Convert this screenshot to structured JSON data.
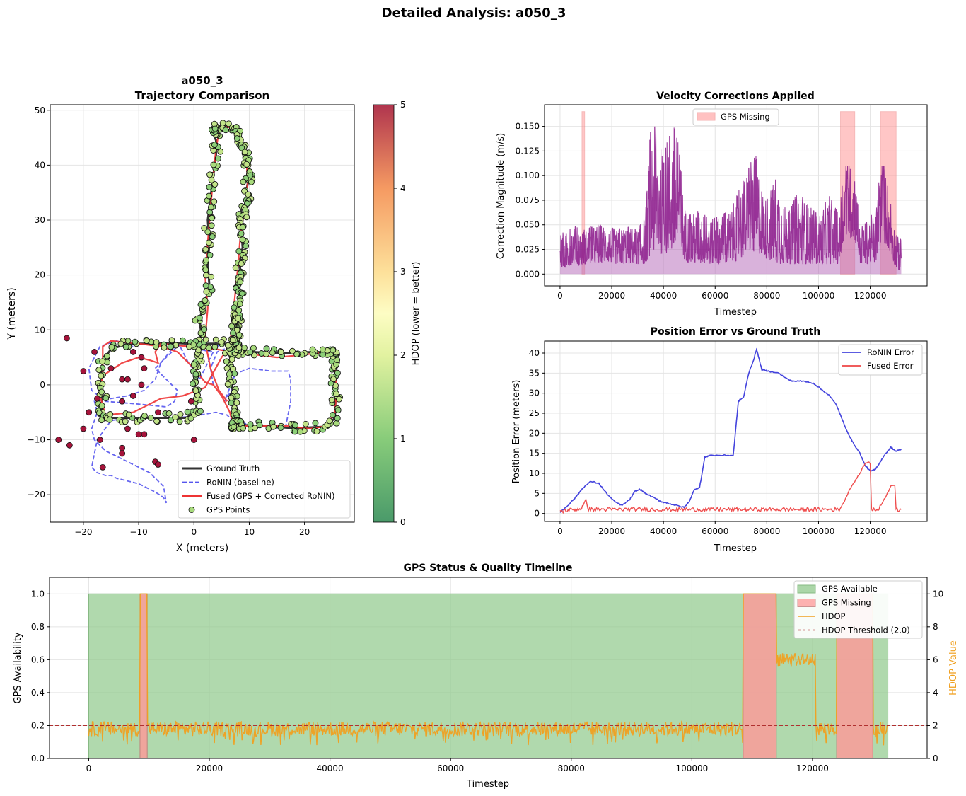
{
  "figure": {
    "title": "Detailed Analysis: a050_3"
  },
  "chart_data": [
    {
      "id": "trajectory",
      "type": "scatter",
      "title": "a050_3\nTrajectory Comparison",
      "title_lines": [
        "a050_3",
        "Trajectory Comparison"
      ],
      "xlabel": "X (meters)",
      "ylabel": "Y (meters)",
      "xlim": [
        -26,
        29
      ],
      "ylim": [
        -25,
        51
      ],
      "xticks": [
        -20,
        -10,
        0,
        10,
        20
      ],
      "yticks": [
        -20,
        -10,
        0,
        10,
        20,
        30,
        40,
        50
      ],
      "grid": true,
      "legend_placement": "lower-right",
      "colorbar": {
        "label": "HDOP (lower = better)",
        "range": [
          0,
          5
        ],
        "ticks": [
          0,
          1,
          2,
          3,
          4,
          5
        ],
        "colormap": "RdYlGn_r"
      },
      "series": [
        {
          "name": "Ground Truth",
          "style": "solid",
          "color": "#333333",
          "x": [
            0,
            0.3,
            0.8,
            1.2,
            1.3,
            1.0,
            2.0,
            2.8,
            2.5,
            2.8,
            2.5,
            3.0,
            3.5,
            4.0,
            4.0,
            3.2,
            3.6,
            4.6,
            6.5,
            7.8,
            8.5,
            8.8,
            9.5,
            9.8,
            10.0,
            9.6,
            9.6,
            8.5,
            8.8,
            8.6,
            8.8,
            8.2,
            8.6,
            8.2,
            8.4,
            8.0,
            7.6,
            8.0,
            7.3,
            7.8,
            7.6,
            7.2,
            7.4,
            6.2,
            6.8,
            6.6,
            7.0,
            7.5,
            7.7,
            7.5,
            7.4,
            7.4,
            7.5,
            9.0,
            12.0,
            17.0,
            20.0,
            24.0,
            25.5,
            25.6,
            25.4,
            25.5,
            25.3,
            25.4,
            24.8,
            22.0,
            18.0,
            14.0,
            10.0,
            8.0,
            7.5,
            7.5,
            6.5,
            3.0,
            0.0,
            -4.0,
            -8.0,
            -12.0,
            -15.0,
            -16.5,
            -16.8,
            -16.5,
            -16.8,
            -16.2,
            -13.0,
            -9.0,
            -5.0,
            -1.5,
            0.5,
            0.3,
            0.0
          ],
          "y": [
            1.0,
            3.0,
            5.0,
            7.0,
            9.5,
            12.0,
            15.0,
            18.0,
            22.0,
            26.0,
            30.0,
            34.0,
            38.0,
            42.0,
            44.5,
            46.5,
            47.0,
            47.2,
            47.0,
            46.2,
            45.2,
            43.0,
            41.5,
            40.0,
            38.0,
            36.0,
            33.0,
            32.0,
            30.0,
            28.0,
            25.0,
            22.0,
            20.0,
            18.0,
            16.0,
            14.0,
            12.5,
            11.5,
            10.5,
            9.0,
            8.0,
            7.0,
            6.5,
            6.2,
            4.0,
            1.5,
            -1.0,
            -3.0,
            -5.0,
            -6.5,
            -7.0,
            -7.3,
            -7.2,
            -7.3,
            -7.5,
            -7.8,
            -7.8,
            -7.6,
            -6.0,
            -3.0,
            0.0,
            2.5,
            4.5,
            5.8,
            5.8,
            6.0,
            5.8,
            5.8,
            6.0,
            6.2,
            6.5,
            7.0,
            7.5,
            7.5,
            7.5,
            7.6,
            7.5,
            7.5,
            6.5,
            4.5,
            1.0,
            -2.0,
            -5.0,
            -6.0,
            -6.0,
            -6.0,
            -6.0,
            -6.0,
            -5.0,
            -2.0,
            1.0
          ]
        },
        {
          "name": "RoNIN (baseline)",
          "style": "dashed",
          "color": "#5555ee",
          "x": [
            3.5,
            3.0,
            4.2,
            5.5,
            6.5,
            7.0,
            7.2,
            6.8,
            5.5,
            7.5,
            10.0,
            14.0,
            17.0,
            17.5,
            17.5,
            16.5,
            12.0,
            9.0,
            7.0,
            6.0,
            4.0,
            1.0,
            -3.0,
            -8.0,
            -12.0,
            -15.0,
            -17.5,
            -18.5,
            -18.0,
            -17.5,
            -16.0,
            -15.0,
            -14.0,
            -10.0,
            -7.0,
            -5.5,
            -5.0,
            -5.5,
            -8.0,
            -12.0,
            -16.0,
            -18.0,
            -18.5,
            -17.5,
            -18.0,
            -12.0,
            -9.0,
            -7.0,
            -6.0,
            -4.0,
            -4.5,
            -2.5,
            -1.0,
            0.5,
            1.0,
            2.0,
            3.5,
            4.0,
            4.5,
            3.0,
            1.0,
            -1.0,
            -3.0,
            -5.0,
            -7.0,
            -5.0,
            -3.0,
            -3.5,
            -5.0,
            -10.0,
            -16.0,
            -18.5,
            -19.0,
            -17.0,
            -14.0,
            -12.0,
            -11.0
          ],
          "y": [
            0.0,
            3.0,
            6.0,
            6.5,
            5.0,
            3.0,
            1.0,
            -1.0,
            -3.0,
            2.0,
            3.0,
            2.5,
            2.5,
            1.0,
            -3.0,
            -8.0,
            -7.5,
            -7.0,
            -6.5,
            -5.5,
            -5.0,
            -5.5,
            -6.0,
            -6.0,
            -6.0,
            -6.5,
            -10.0,
            -15.0,
            -15.5,
            -16.0,
            -16.5,
            -16.5,
            -17.0,
            -18.0,
            -19.5,
            -20.5,
            -21.5,
            -18.5,
            -16.0,
            -14.0,
            -12.0,
            -10.0,
            -8.0,
            -5.0,
            -3.0,
            -2.0,
            -1.0,
            1.0,
            4.0,
            6.5,
            8.0,
            7.0,
            4.0,
            2.0,
            1.0,
            3.0,
            6.0,
            7.5,
            7.0,
            6.0,
            6.5,
            7.5,
            7.0,
            5.0,
            3.0,
            1.0,
            -1.0,
            -3.0,
            -4.0,
            -3.5,
            -3.0,
            -1.0,
            3.0,
            7.0,
            8.0,
            7.5,
            7.0
          ]
        },
        {
          "name": "Fused (GPS + Corrected RoNIN)",
          "style": "solid",
          "color": "#ee3333",
          "x": [
            6.0,
            4.5,
            3.0,
            2.0,
            2.5,
            2.0,
            2.5,
            3.0,
            3.5,
            4.0,
            4.5,
            6.0,
            7.5,
            8.5,
            9.5,
            9.7,
            9.5,
            8.8,
            8.3,
            8.0,
            7.6,
            7.2,
            6.8,
            6.5,
            5.0,
            2.0,
            -2.0,
            -6.0,
            -11.0,
            -16.0,
            -17.0,
            -16.5,
            -16.5,
            -15.0,
            -10.0,
            -6.0,
            -3.0,
            0.0,
            2.0,
            3.5,
            5.0,
            6.5,
            7.0,
            7.5,
            12.0,
            17.0,
            21.0,
            24.0,
            25.5,
            25.8,
            25.6,
            25.3,
            24.5,
            20.0,
            15.0,
            11.0,
            8.5,
            7.0,
            4.0,
            -1.0,
            -6.0,
            -7.0,
            -6.5,
            -8.0,
            -10.0,
            -13.0,
            -16.0
          ],
          "y": [
            -3.0,
            -1.0,
            3.0,
            8.0,
            14.0,
            20.0,
            26.0,
            32.0,
            38.0,
            43.0,
            46.0,
            47.0,
            46.5,
            44.5,
            41.0,
            37.0,
            33.0,
            30.0,
            26.0,
            22.0,
            18.0,
            14.0,
            10.0,
            7.0,
            5.0,
            -0.5,
            -2.0,
            -2.5,
            -5.0,
            -5.5,
            -2.0,
            2.0,
            7.0,
            8.0,
            7.5,
            7.0,
            6.0,
            3.0,
            0.5,
            0.0,
            -2.0,
            -5.0,
            -7.0,
            -7.5,
            -7.5,
            -7.5,
            -8.0,
            -7.5,
            -5.0,
            -1.0,
            2.5,
            5.5,
            6.0,
            5.5,
            5.0,
            5.5,
            6.0,
            6.0,
            6.5,
            7.0,
            7.5,
            6.0,
            4.0,
            4.5,
            5.0,
            4.0,
            2.0
          ]
        },
        {
          "name": "GPS Points",
          "style": "marker",
          "color": "#a8db7c",
          "note_color_by": "HDOP"
        }
      ]
    },
    {
      "id": "velocity",
      "type": "area",
      "title": "Velocity Corrections Applied",
      "xlabel": "Timestep",
      "ylabel": "Correction Magnitude (m/s)",
      "xlim": [
        -6000,
        142000
      ],
      "ylim": [
        -0.012,
        0.172
      ],
      "xticks": [
        0,
        20000,
        40000,
        60000,
        80000,
        100000,
        120000
      ],
      "yticks": [
        0.0,
        0.025,
        0.05,
        0.075,
        0.1,
        0.125,
        0.15
      ],
      "ytick_labels": [
        "0.000",
        "0.025",
        "0.050",
        "0.075",
        "0.100",
        "0.125",
        "0.150"
      ],
      "grid": true,
      "legend_placement": "upper-center",
      "series": [
        {
          "name": "GPS Missing",
          "color": "#ff9999",
          "spans": [
            [
              8500,
              9500
            ],
            [
              108500,
              114000
            ],
            [
              124000,
              130000
            ]
          ],
          "top": 0.165
        }
      ],
      "envelope": {
        "x": [
          0,
          2000,
          5000,
          8000,
          10000,
          14000,
          18000,
          22000,
          26000,
          30000,
          33000,
          35000,
          38000,
          40000,
          42000,
          44000,
          46000,
          48000,
          50000,
          54000,
          58000,
          62000,
          66000,
          70000,
          72000,
          74000,
          76000,
          78000,
          80000,
          84000,
          88000,
          92000,
          96000,
          100000,
          104000,
          108000,
          110000,
          114000,
          116000,
          120000,
          122000,
          124000,
          126000,
          128000,
          130000,
          132000
        ],
        "hi": [
          0.045,
          0.04,
          0.05,
          0.045,
          0.045,
          0.05,
          0.05,
          0.045,
          0.05,
          0.045,
          0.06,
          0.15,
          0.15,
          0.11,
          0.15,
          0.15,
          0.13,
          0.07,
          0.06,
          0.065,
          0.055,
          0.06,
          0.065,
          0.09,
          0.1,
          0.115,
          0.12,
          0.09,
          0.075,
          0.1,
          0.06,
          0.085,
          0.07,
          0.06,
          0.08,
          0.06,
          0.11,
          0.11,
          0.045,
          0.06,
          0.06,
          0.11,
          0.11,
          0.07,
          0.04,
          0.035
        ],
        "lo": [
          0.005,
          0.005,
          0.01,
          0.008,
          0.01,
          0.01,
          0.012,
          0.01,
          0.01,
          0.01,
          0.01,
          0.02,
          0.02,
          0.02,
          0.02,
          0.02,
          0.02,
          0.015,
          0.01,
          0.01,
          0.01,
          0.01,
          0.01,
          0.015,
          0.02,
          0.02,
          0.02,
          0.02,
          0.015,
          0.01,
          0.01,
          0.01,
          0.01,
          0.01,
          0.01,
          0.01,
          0.035,
          0.035,
          0.01,
          0.01,
          0.01,
          0.03,
          0.03,
          0.02,
          0.005,
          0.002
        ]
      }
    },
    {
      "id": "position-error",
      "type": "line",
      "title": "Position Error vs Ground Truth",
      "xlabel": "Timestep",
      "ylabel": "Position Error (meters)",
      "xlim": [
        -6000,
        142000
      ],
      "ylim": [
        -2,
        43
      ],
      "xticks": [
        0,
        20000,
        40000,
        60000,
        80000,
        100000,
        120000
      ],
      "yticks": [
        0,
        5,
        10,
        15,
        20,
        25,
        30,
        35,
        40
      ],
      "grid": true,
      "legend_placement": "upper-right",
      "series": [
        {
          "name": "RoNIN Error",
          "color": "#4444dd",
          "x": [
            0,
            3000,
            6000,
            9000,
            12000,
            15000,
            18000,
            21000,
            24000,
            27000,
            29000,
            31000,
            33000,
            36000,
            39000,
            42000,
            45000,
            48000,
            50000,
            52000,
            54000,
            56000,
            58000,
            63000,
            67000,
            69000,
            71000,
            73000,
            75000,
            76000,
            78000,
            80000,
            84000,
            88000,
            90000,
            94000,
            98000,
            101000,
            104000,
            107000,
            110000,
            113000,
            116000,
            118000,
            120000,
            122000,
            124000,
            126000,
            128000,
            130000,
            132000
          ],
          "y": [
            0.3,
            2.0,
            4.0,
            6.5,
            8.0,
            7.5,
            5.0,
            3.0,
            2.0,
            3.5,
            5.5,
            6.0,
            5.0,
            4.0,
            3.0,
            2.5,
            2.0,
            1.5,
            3.0,
            6.0,
            6.5,
            14.0,
            14.5,
            14.5,
            14.5,
            28.0,
            29.0,
            35.0,
            38.5,
            41.0,
            36.0,
            35.5,
            35.2,
            33.5,
            33.0,
            33.0,
            32.5,
            31.0,
            29.5,
            27.0,
            22.0,
            18.0,
            15.0,
            12.0,
            10.5,
            11.0,
            13.0,
            15.0,
            16.5,
            15.5,
            16.0
          ]
        },
        {
          "name": "Fused Error",
          "color": "#ee4444",
          "x": [
            0,
            5000,
            8000,
            9000,
            10000,
            11000,
            20000,
            40000,
            60000,
            80000,
            100000,
            108000,
            110000,
            112000,
            114000,
            116000,
            118000,
            119500,
            120000,
            120500,
            121000,
            123000,
            125000,
            127000,
            128000,
            129500,
            130000,
            131000,
            132000
          ],
          "y": [
            0.5,
            1.0,
            1.2,
            2.0,
            3.5,
            1.0,
            1.0,
            1.0,
            1.0,
            1.0,
            1.0,
            1.0,
            3.0,
            6.0,
            8.0,
            10.0,
            12.5,
            12.8,
            12.5,
            1.0,
            0.8,
            1.0,
            3.0,
            5.5,
            7.0,
            7.0,
            1.0,
            0.8,
            1.0
          ]
        }
      ]
    },
    {
      "id": "gps-status",
      "type": "area",
      "title": "GPS Status & Quality Timeline",
      "xlabel": "Timestep",
      "ylabel": "GPS Availability",
      "ylabel_right": "HDOP Value",
      "xlim": [
        -6500,
        139000
      ],
      "ylim": [
        0,
        1.1
      ],
      "ylim_right": [
        0,
        11
      ],
      "xticks": [
        0,
        20000,
        40000,
        60000,
        80000,
        100000,
        120000
      ],
      "yticks": [
        0.0,
        0.2,
        0.4,
        0.6,
        0.8,
        1.0
      ],
      "ytick_labels": [
        "0.0",
        "0.2",
        "0.4",
        "0.6",
        "0.8",
        "1.0"
      ],
      "yticks_right": [
        0,
        2,
        4,
        6,
        8,
        10
      ],
      "grid": true,
      "legend_placement": "upper-right",
      "series": [
        {
          "name": "GPS Available",
          "color": "#90c98b",
          "spans": [
            [
              0,
              132500
            ]
          ]
        },
        {
          "name": "GPS Missing",
          "color": "#ff9999",
          "spans": [
            [
              8500,
              9700
            ],
            [
              108500,
              114000
            ],
            [
              124000,
              130000
            ]
          ]
        },
        {
          "name": "HDOP",
          "color": "#f0a020",
          "baseline": 1.8,
          "elevated": [
            [
              114000,
              120500,
              6.0
            ]
          ],
          "missing_value": 10
        },
        {
          "name": "HDOP Threshold (2.0)",
          "color": "#b03030",
          "style": "dashed",
          "value": 2.0
        }
      ]
    }
  ]
}
